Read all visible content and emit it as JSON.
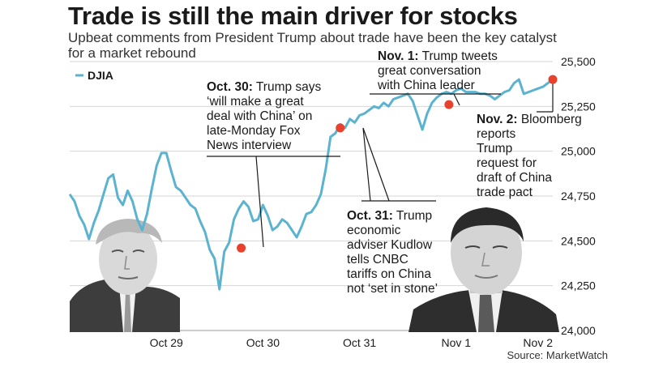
{
  "chart_data": {
    "type": "line",
    "title": "Trade is still the main driver for stocks",
    "subtitle": "Upbeat comments from President Trump about trade have been the key catalyst for a market rebound",
    "source": "Source: MarketWatch",
    "legend": {
      "position": "top-left",
      "label": "DJIA"
    },
    "ylim": [
      24000,
      25500
    ],
    "yticks": [
      24000,
      24250,
      24500,
      24750,
      25000,
      25250,
      25500
    ],
    "ytick_labels": [
      "24,000",
      "24,250",
      "24,500",
      "24,750",
      "25,000",
      "25,250",
      "25,500"
    ],
    "xlim": [
      0,
      100
    ],
    "xticks": [
      {
        "x": 20,
        "label": "Oct 29"
      },
      {
        "x": 40,
        "label": "Oct 30"
      },
      {
        "x": 60,
        "label": "Oct 31"
      },
      {
        "x": 80,
        "label": "Nov 1"
      },
      {
        "x": 100,
        "label": "Nov 2"
      }
    ],
    "series": [
      {
        "name": "DJIA",
        "color": "#5bb3d0",
        "x": [
          0,
          1,
          2,
          3,
          4,
          5,
          6,
          7,
          8,
          9,
          10,
          11,
          12,
          13,
          14,
          15,
          16,
          17,
          18,
          19,
          20,
          21,
          22,
          23,
          24,
          25,
          26,
          27,
          28,
          29,
          30,
          31,
          32,
          33,
          34,
          35,
          36,
          37,
          38,
          39,
          40,
          41,
          42,
          43,
          44,
          45,
          46,
          47,
          48,
          49,
          50,
          51,
          52,
          53,
          54,
          55,
          56,
          57,
          58,
          59,
          60,
          61,
          62,
          63,
          64,
          65,
          66,
          67,
          68,
          69,
          70,
          71,
          72,
          73,
          74,
          75,
          76,
          77,
          78,
          79,
          80,
          81,
          82,
          83,
          84,
          85,
          86,
          87,
          88,
          89,
          90,
          91,
          92,
          93,
          94,
          95,
          96,
          97,
          98,
          99,
          100
        ],
        "y": [
          24760,
          24720,
          24640,
          24590,
          24510,
          24600,
          24670,
          24760,
          24850,
          24870,
          24740,
          24700,
          24780,
          24720,
          24620,
          24560,
          24650,
          24790,
          24920,
          24990,
          24990,
          24890,
          24800,
          24780,
          24740,
          24700,
          24680,
          24610,
          24550,
          24450,
          24400,
          24230,
          24440,
          24490,
          24620,
          24680,
          24720,
          24690,
          24610,
          24620,
          24700,
          24640,
          24560,
          24580,
          24620,
          24600,
          24560,
          24520,
          24580,
          24650,
          24660,
          24700,
          24760,
          24900,
          25080,
          25100,
          25150,
          25130,
          25180,
          25160,
          25200,
          25210,
          25230,
          25250,
          25240,
          25270,
          25250,
          25290,
          25300,
          25310,
          25320,
          25280,
          25200,
          25120,
          25210,
          25270,
          25300,
          25320,
          25330,
          25320,
          25340,
          25350,
          25330,
          25330,
          25330,
          25320,
          25320,
          25310,
          25290,
          25310,
          25330,
          25340,
          25380,
          25400,
          25320,
          25330,
          25340,
          25350,
          25360,
          25380,
          25400
        ]
      }
    ],
    "highlight_points": [
      {
        "x": 35.5,
        "y": 24460
      },
      {
        "x": 56,
        "y": 25130
      },
      {
        "x": 78.5,
        "y": 25260
      },
      {
        "x": 100,
        "y": 25400
      }
    ],
    "annotations": [
      {
        "bold": "Oct. 30:",
        "text": "Trump says\n‘will make a great\ndeal with China’ on\nlate-Monday Fox\nNews interview"
      },
      {
        "bold": "Oct. 31:",
        "text": "Trump\neconomic\nadviser Kudlow\ntells CNBC\ntariffs on China\nnot ‘set in stone’"
      },
      {
        "bold": "Nov. 1:",
        "text": "Trump tweets\ngreat conversation\nwith China leader"
      },
      {
        "bold": "Nov. 2:",
        "text": "Bloomberg\nreports\nTrump\nrequest for\ndraft of China\ntrade pact"
      }
    ],
    "grid": true
  },
  "images": [
    {
      "name": "trump-photo"
    },
    {
      "name": "xi-photo"
    }
  ]
}
